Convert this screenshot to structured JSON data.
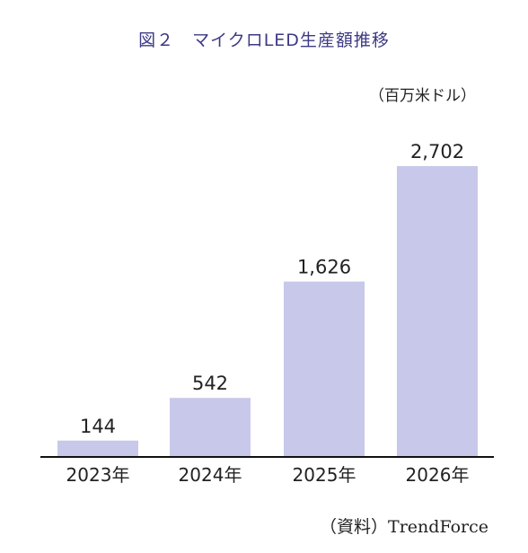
{
  "figure": {
    "title": "図２　マイクロLED生産額推移",
    "unit": "（百万米ドル）",
    "source": "（資料）TrendForce"
  },
  "colors": {
    "bar": "#c8c8ea",
    "title": "#3d3a86",
    "axis": "#111111",
    "text": "#222222"
  },
  "chart_data": {
    "type": "bar",
    "title": "図２　マイクロLED生産額推移",
    "xlabel": "",
    "ylabel": "",
    "unit": "（百万米ドル）",
    "categories": [
      "2023年",
      "2024年",
      "2025年",
      "2026年"
    ],
    "values": [
      144,
      542,
      1626,
      2702
    ],
    "value_labels": [
      "144",
      "542",
      "1,626",
      "2,702"
    ],
    "ylim": [
      0,
      2702
    ],
    "grid": false,
    "legend": "none"
  }
}
